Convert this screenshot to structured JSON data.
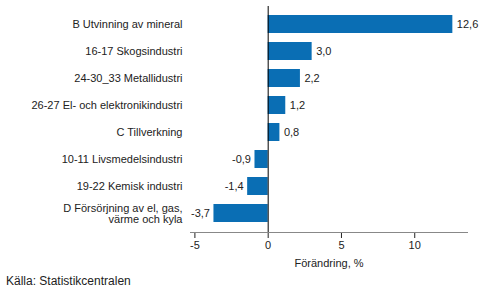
{
  "chart_data": {
    "type": "bar",
    "orientation": "horizontal",
    "categories": [
      "B Utvinning av mineral",
      "16-17 Skogsindustri",
      "24-30_33 Metallidustri",
      "26-27 El- och elektronikindustri",
      "C Tillverkning",
      "10-11 Livsmedelsindustri",
      "19-22 Kemisk industri",
      "D Försörjning av el, gas,\nvärme och kyla"
    ],
    "values": [
      12.6,
      3.0,
      2.2,
      1.2,
      0.8,
      -0.9,
      -1.4,
      -3.7
    ],
    "value_labels": [
      "12,6",
      "3,0",
      "2,2",
      "1,2",
      "0,8",
      "-0,9",
      "-1,4",
      "-3,7"
    ],
    "data_labels": true,
    "color": "#0a6eb4",
    "xlabel": "Förändring, %",
    "xlim": [
      -5.3,
      13.6
    ],
    "xticks": [
      -5,
      0,
      5,
      10
    ],
    "grid": false,
    "source": "Källa: Statistikcentralen"
  }
}
